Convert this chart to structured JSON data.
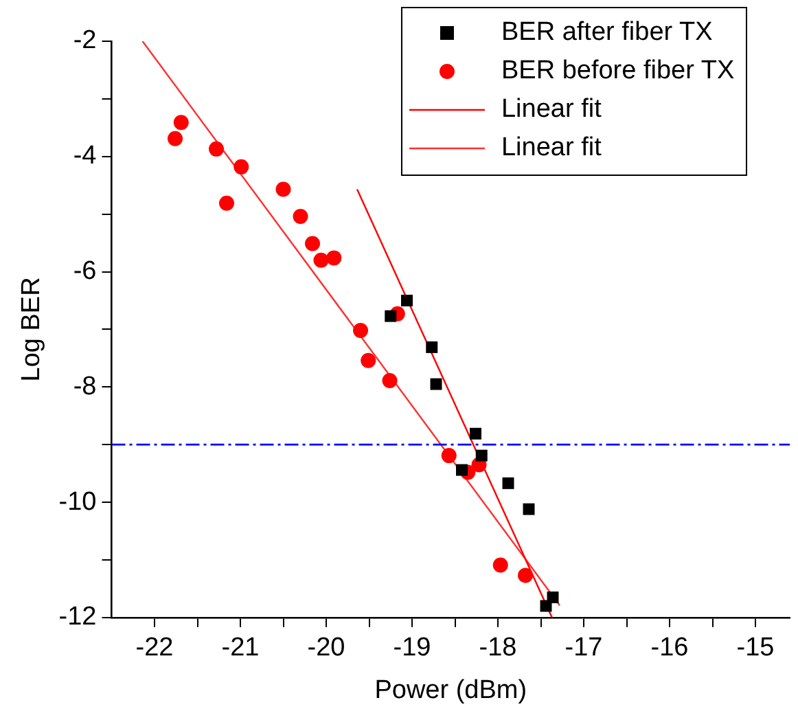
{
  "chart_data": {
    "type": "scatter",
    "xlabel": "Power (dBm)",
    "ylabel": "Log BER",
    "xlim": [
      -22.5,
      -14.6
    ],
    "ylim": [
      -12,
      -2
    ],
    "xticks": [
      -22,
      {
        "value": -21.5,
        "label": null
      },
      -21,
      {
        "value": -20.5,
        "label": null
      },
      -20,
      {
        "value": -19.5,
        "label": null
      },
      -19,
      {
        "value": -18.5,
        "label": null
      },
      -18,
      {
        "value": -17.5,
        "label": null
      },
      -17,
      {
        "value": -16.5,
        "label": null
      },
      -16,
      {
        "value": -15.5,
        "label": null
      },
      -15
    ],
    "yticks": [
      -12,
      {
        "value": -11,
        "label": null
      },
      -10,
      {
        "value": -9,
        "label": null
      },
      -8,
      {
        "value": -7,
        "label": null
      },
      -6,
      {
        "value": -5,
        "label": null
      },
      -4,
      {
        "value": -3,
        "label": null
      },
      -2
    ],
    "grid": false,
    "legend": "top right",
    "ref_lines": [
      {
        "axis": "y",
        "value": -9,
        "color": "#0000ff",
        "line_style": "dashed"
      }
    ],
    "series": [
      {
        "name": "BER after fiber TX",
        "type": "scatter",
        "marker": "square",
        "color": "#000000",
        "x": [
          -19.25,
          -19.06,
          -18.77,
          -18.72,
          -18.26,
          -18.19,
          -18.42,
          -17.88,
          -17.64,
          -17.44,
          -17.36
        ],
        "values": [
          -6.77,
          -6.5,
          -7.31,
          -7.95,
          -8.81,
          -9.19,
          -9.44,
          -9.67,
          -10.12,
          -11.8,
          -11.65
        ]
      },
      {
        "name": "BER before fiber TX",
        "type": "scatter",
        "marker": "circle",
        "color": "#ff0000",
        "x": [
          -21.76,
          -21.69,
          -21.28,
          -20.99,
          -21.16,
          -20.5,
          -20.3,
          -20.16,
          -20.06,
          -19.91,
          -19.17,
          -19.6,
          -19.51,
          -19.26,
          -18.57,
          -18.35,
          -18.22,
          -17.97,
          -17.68
        ],
        "values": [
          -3.69,
          -3.41,
          -3.87,
          -4.18,
          -4.81,
          -4.57,
          -5.04,
          -5.51,
          -5.8,
          -5.76,
          -6.73,
          -7.02,
          -7.54,
          -7.89,
          -9.19,
          -9.48,
          -9.35,
          -11.09,
          -11.27
        ]
      },
      {
        "name": "Linear fit",
        "type": "line",
        "marker": "none",
        "line_style": "solid",
        "color": "#ff0000",
        "x": [
          -19.64,
          -17.37
        ],
        "values": [
          -4.57,
          -12.0
        ]
      },
      {
        "name": "Linear fit",
        "type": "line",
        "marker": "none",
        "line_style": "solid",
        "color": "#ff3030",
        "x": [
          -22.14,
          -17.28
        ],
        "values": [
          -2.0,
          -11.79
        ]
      }
    ]
  }
}
